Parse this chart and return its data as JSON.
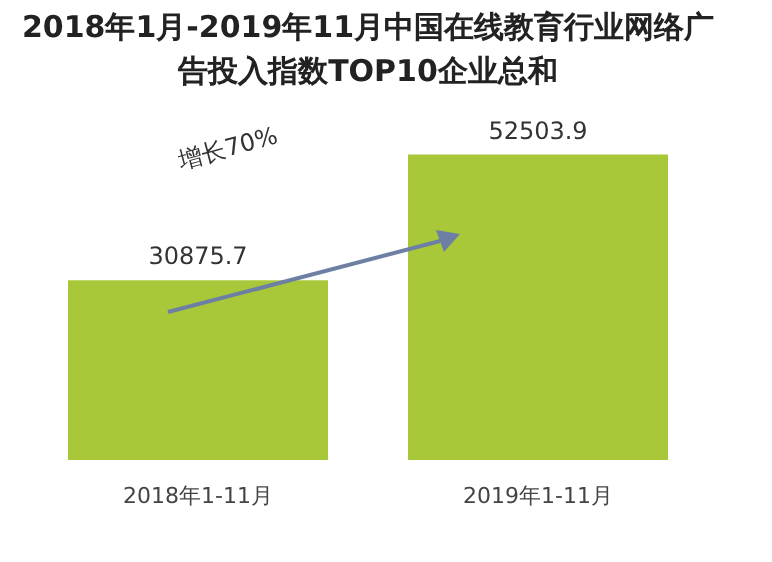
{
  "chart_data": {
    "type": "bar",
    "title": "2018年1月-2019年11月中国在线教育行业网络广告投入指数TOP10企业总和",
    "categories": [
      "2018年1-11月",
      "2019年1-11月"
    ],
    "series": [
      {
        "color": "#a8c83a",
        "values": [
          30875.7,
          52503.9
        ]
      }
    ],
    "data_labels": true,
    "annotations": [
      "增长70%"
    ]
  }
}
